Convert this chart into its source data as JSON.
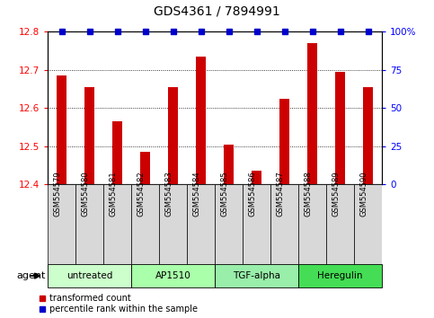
{
  "title": "GDS4361 / 7894991",
  "samples": [
    "GSM554579",
    "GSM554580",
    "GSM554581",
    "GSM554582",
    "GSM554583",
    "GSM554584",
    "GSM554585",
    "GSM554586",
    "GSM554587",
    "GSM554588",
    "GSM554589",
    "GSM554590"
  ],
  "bar_values": [
    12.685,
    12.655,
    12.565,
    12.485,
    12.655,
    12.735,
    12.505,
    12.435,
    12.625,
    12.77,
    12.695,
    12.655
  ],
  "percentile_values": [
    100,
    100,
    100,
    100,
    100,
    100,
    100,
    100,
    100,
    100,
    100,
    100
  ],
  "bar_color": "#cc0000",
  "percentile_color": "#0000cc",
  "ylim_left": [
    12.4,
    12.8
  ],
  "ylim_right": [
    0,
    100
  ],
  "yticks_left": [
    12.4,
    12.5,
    12.6,
    12.7,
    12.8
  ],
  "yticks_right": [
    0,
    25,
    50,
    75,
    100
  ],
  "ytick_labels_right": [
    "0",
    "25",
    "50",
    "75",
    "100%"
  ],
  "agent_groups": [
    {
      "label": "untreated",
      "start": 0,
      "end": 3,
      "color": "#ccffcc"
    },
    {
      "label": "AP1510",
      "start": 3,
      "end": 6,
      "color": "#aaffaa"
    },
    {
      "label": "TGF-alpha",
      "start": 6,
      "end": 9,
      "color": "#99eeaa"
    },
    {
      "label": "Heregulin",
      "start": 9,
      "end": 12,
      "color": "#44dd55"
    }
  ],
  "agent_label": "agent",
  "legend_items": [
    {
      "label": "transformed count",
      "color": "#cc0000"
    },
    {
      "label": "percentile rank within the sample",
      "color": "#0000cc"
    }
  ],
  "background_color": "#ffffff",
  "plot_bg_color": "#ffffff",
  "sample_bg_color": "#d8d8d8",
  "bar_width": 0.35,
  "xlim": [
    -0.5,
    11.5
  ]
}
